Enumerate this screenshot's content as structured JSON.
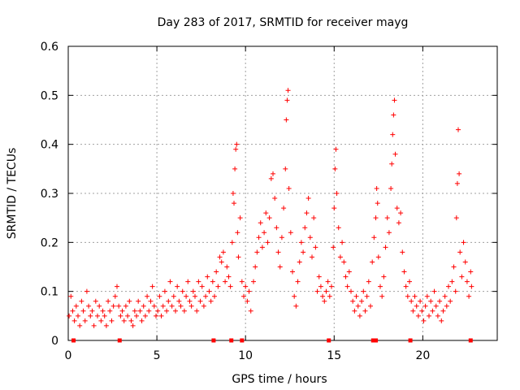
{
  "chart_data": {
    "type": "scatter",
    "title": "Day 283 of 2017, SRMTID for receiver mayg",
    "xlabel": "GPS time / hours",
    "ylabel": "SRMTID / TECUs",
    "xlim": [
      0,
      24.2
    ],
    "ylim": [
      0,
      0.6
    ],
    "xticks": [
      0,
      5,
      10,
      15,
      20
    ],
    "xtick_labels": [
      "0",
      "5",
      "10",
      "15",
      "20"
    ],
    "yticks": [
      0,
      0.1,
      0.2,
      0.3,
      0.4,
      0.5,
      0.6
    ],
    "ytick_labels": [
      "0",
      "0.1",
      "0.2",
      "0.3",
      "0.4",
      "0.5",
      "0.6"
    ],
    "grid": true,
    "marker": "+",
    "color": "#ff0000",
    "series": [
      {
        "name": "SRMTID",
        "points": [
          [
            0.05,
            0.05
          ],
          [
            0.15,
            0.09
          ],
          [
            0.25,
            0.06
          ],
          [
            0.35,
            0.04
          ],
          [
            0.45,
            0.07
          ],
          [
            0.55,
            0.05
          ],
          [
            0.65,
            0.03
          ],
          [
            0.75,
            0.08
          ],
          [
            0.85,
            0.06
          ],
          [
            0.95,
            0.04
          ],
          [
            1.05,
            0.1
          ],
          [
            1.15,
            0.07
          ],
          [
            1.25,
            0.05
          ],
          [
            1.35,
            0.06
          ],
          [
            1.45,
            0.03
          ],
          [
            1.55,
            0.08
          ],
          [
            1.65,
            0.05
          ],
          [
            1.75,
            0.07
          ],
          [
            1.85,
            0.04
          ],
          [
            1.95,
            0.06
          ],
          [
            2.05,
            0.05
          ],
          [
            2.15,
            0.03
          ],
          [
            2.25,
            0.08
          ],
          [
            2.35,
            0.06
          ],
          [
            2.45,
            0.04
          ],
          [
            2.55,
            0.07
          ],
          [
            2.65,
            0.09
          ],
          [
            2.75,
            0.11
          ],
          [
            2.85,
            0.07
          ],
          [
            2.95,
            0.05
          ],
          [
            3.05,
            0.06
          ],
          [
            3.15,
            0.04
          ],
          [
            3.25,
            0.07
          ],
          [
            3.35,
            0.05
          ],
          [
            3.45,
            0.08
          ],
          [
            3.55,
            0.04
          ],
          [
            3.65,
            0.03
          ],
          [
            3.75,
            0.06
          ],
          [
            3.85,
            0.05
          ],
          [
            3.95,
            0.08
          ],
          [
            4.05,
            0.06
          ],
          [
            4.15,
            0.04
          ],
          [
            4.25,
            0.07
          ],
          [
            4.35,
            0.05
          ],
          [
            4.45,
            0.09
          ],
          [
            4.55,
            0.06
          ],
          [
            4.65,
            0.08
          ],
          [
            4.75,
            0.11
          ],
          [
            4.85,
            0.07
          ],
          [
            4.95,
            0.05
          ],
          [
            5.05,
            0.06
          ],
          [
            5.15,
            0.09
          ],
          [
            5.25,
            0.05
          ],
          [
            5.35,
            0.07
          ],
          [
            5.45,
            0.1
          ],
          [
            5.55,
            0.06
          ],
          [
            5.65,
            0.08
          ],
          [
            5.75,
            0.12
          ],
          [
            5.85,
            0.07
          ],
          [
            5.95,
            0.09
          ],
          [
            6.05,
            0.06
          ],
          [
            6.15,
            0.11
          ],
          [
            6.25,
            0.08
          ],
          [
            6.35,
            0.07
          ],
          [
            6.45,
            0.1
          ],
          [
            6.55,
            0.06
          ],
          [
            6.65,
            0.09
          ],
          [
            6.75,
            0.12
          ],
          [
            6.85,
            0.08
          ],
          [
            6.95,
            0.07
          ],
          [
            7.05,
            0.1
          ],
          [
            7.15,
            0.09
          ],
          [
            7.25,
            0.06
          ],
          [
            7.35,
            0.12
          ],
          [
            7.45,
            0.08
          ],
          [
            7.55,
            0.11
          ],
          [
            7.65,
            0.07
          ],
          [
            7.75,
            0.09
          ],
          [
            7.85,
            0.13
          ],
          [
            7.95,
            0.1
          ],
          [
            8.05,
            0.08
          ],
          [
            8.15,
            0.12
          ],
          [
            8.25,
            0.09
          ],
          [
            8.35,
            0.14
          ],
          [
            8.45,
            0.11
          ],
          [
            8.55,
            0.17
          ],
          [
            8.65,
            0.16
          ],
          [
            8.75,
            0.18
          ],
          [
            8.85,
            0.12
          ],
          [
            8.95,
            0.15
          ],
          [
            9.05,
            0.13
          ],
          [
            9.15,
            0.11
          ],
          [
            9.25,
            0.2
          ],
          [
            9.3,
            0.3
          ],
          [
            9.35,
            0.28
          ],
          [
            9.4,
            0.35
          ],
          [
            9.45,
            0.39
          ],
          [
            9.5,
            0.4
          ],
          [
            9.55,
            0.22
          ],
          [
            9.6,
            0.17
          ],
          [
            9.7,
            0.25
          ],
          [
            9.8,
            0.12
          ],
          [
            9.9,
            0.09
          ],
          [
            10.0,
            0.11
          ],
          [
            10.1,
            0.08
          ],
          [
            10.2,
            0.1
          ],
          [
            10.3,
            0.06
          ],
          [
            10.45,
            0.12
          ],
          [
            10.55,
            0.15
          ],
          [
            10.65,
            0.18
          ],
          [
            10.75,
            0.21
          ],
          [
            10.85,
            0.24
          ],
          [
            10.95,
            0.19
          ],
          [
            11.05,
            0.22
          ],
          [
            11.15,
            0.26
          ],
          [
            11.25,
            0.2
          ],
          [
            11.35,
            0.25
          ],
          [
            11.45,
            0.33
          ],
          [
            11.55,
            0.34
          ],
          [
            11.65,
            0.29
          ],
          [
            11.75,
            0.23
          ],
          [
            11.85,
            0.18
          ],
          [
            11.95,
            0.15
          ],
          [
            12.05,
            0.21
          ],
          [
            12.15,
            0.27
          ],
          [
            12.25,
            0.35
          ],
          [
            12.3,
            0.45
          ],
          [
            12.35,
            0.49
          ],
          [
            12.4,
            0.51
          ],
          [
            12.45,
            0.31
          ],
          [
            12.55,
            0.22
          ],
          [
            12.65,
            0.14
          ],
          [
            12.75,
            0.09
          ],
          [
            12.85,
            0.07
          ],
          [
            12.95,
            0.12
          ],
          [
            13.05,
            0.16
          ],
          [
            13.15,
            0.2
          ],
          [
            13.25,
            0.18
          ],
          [
            13.35,
            0.23
          ],
          [
            13.45,
            0.26
          ],
          [
            13.55,
            0.29
          ],
          [
            13.65,
            0.21
          ],
          [
            13.75,
            0.17
          ],
          [
            13.85,
            0.25
          ],
          [
            13.95,
            0.19
          ],
          [
            14.05,
            0.1
          ],
          [
            14.15,
            0.13
          ],
          [
            14.25,
            0.11
          ],
          [
            14.35,
            0.09
          ],
          [
            14.45,
            0.08
          ],
          [
            14.55,
            0.1
          ],
          [
            14.65,
            0.12
          ],
          [
            14.75,
            0.09
          ],
          [
            14.85,
            0.11
          ],
          [
            14.95,
            0.19
          ],
          [
            15.0,
            0.27
          ],
          [
            15.05,
            0.35
          ],
          [
            15.1,
            0.39
          ],
          [
            15.15,
            0.3
          ],
          [
            15.25,
            0.23
          ],
          [
            15.35,
            0.17
          ],
          [
            15.45,
            0.2
          ],
          [
            15.55,
            0.16
          ],
          [
            15.65,
            0.13
          ],
          [
            15.75,
            0.11
          ],
          [
            15.85,
            0.14
          ],
          [
            15.95,
            0.1
          ],
          [
            16.05,
            0.08
          ],
          [
            16.15,
            0.06
          ],
          [
            16.25,
            0.09
          ],
          [
            16.35,
            0.07
          ],
          [
            16.45,
            0.05
          ],
          [
            16.55,
            0.08
          ],
          [
            16.65,
            0.1
          ],
          [
            16.75,
            0.06
          ],
          [
            16.85,
            0.09
          ],
          [
            16.95,
            0.12
          ],
          [
            17.05,
            0.07
          ],
          [
            17.15,
            0.16
          ],
          [
            17.25,
            0.21
          ],
          [
            17.35,
            0.25
          ],
          [
            17.4,
            0.31
          ],
          [
            17.45,
            0.28
          ],
          [
            17.5,
            0.17
          ],
          [
            17.6,
            0.11
          ],
          [
            17.7,
            0.09
          ],
          [
            17.8,
            0.13
          ],
          [
            17.9,
            0.19
          ],
          [
            18.0,
            0.25
          ],
          [
            18.1,
            0.22
          ],
          [
            18.2,
            0.31
          ],
          [
            18.25,
            0.36
          ],
          [
            18.3,
            0.42
          ],
          [
            18.35,
            0.46
          ],
          [
            18.4,
            0.49
          ],
          [
            18.45,
            0.38
          ],
          [
            18.55,
            0.27
          ],
          [
            18.65,
            0.24
          ],
          [
            18.75,
            0.26
          ],
          [
            18.85,
            0.18
          ],
          [
            18.95,
            0.14
          ],
          [
            19.05,
            0.11
          ],
          [
            19.15,
            0.09
          ],
          [
            19.25,
            0.12
          ],
          [
            19.35,
            0.08
          ],
          [
            19.45,
            0.06
          ],
          [
            19.55,
            0.09
          ],
          [
            19.65,
            0.07
          ],
          [
            19.75,
            0.05
          ],
          [
            19.85,
            0.08
          ],
          [
            19.95,
            0.06
          ],
          [
            20.05,
            0.04
          ],
          [
            20.15,
            0.07
          ],
          [
            20.25,
            0.09
          ],
          [
            20.35,
            0.05
          ],
          [
            20.45,
            0.08
          ],
          [
            20.55,
            0.06
          ],
          [
            20.65,
            0.1
          ],
          [
            20.75,
            0.07
          ],
          [
            20.85,
            0.05
          ],
          [
            20.95,
            0.08
          ],
          [
            21.05,
            0.04
          ],
          [
            21.15,
            0.06
          ],
          [
            21.25,
            0.09
          ],
          [
            21.35,
            0.07
          ],
          [
            21.45,
            0.11
          ],
          [
            21.55,
            0.08
          ],
          [
            21.65,
            0.12
          ],
          [
            21.75,
            0.15
          ],
          [
            21.85,
            0.1
          ],
          [
            21.9,
            0.25
          ],
          [
            21.95,
            0.32
          ],
          [
            22.0,
            0.43
          ],
          [
            22.05,
            0.34
          ],
          [
            22.1,
            0.18
          ],
          [
            22.2,
            0.13
          ],
          [
            22.3,
            0.2
          ],
          [
            22.4,
            0.16
          ],
          [
            22.5,
            0.12
          ],
          [
            22.6,
            0.09
          ],
          [
            22.7,
            0.14
          ],
          [
            22.75,
            0.11
          ]
        ]
      }
    ],
    "gap_markers_x": [
      0.3,
      2.9,
      8.2,
      9.2,
      9.8,
      14.7,
      17.2,
      17.35,
      19.3,
      22.7
    ]
  }
}
